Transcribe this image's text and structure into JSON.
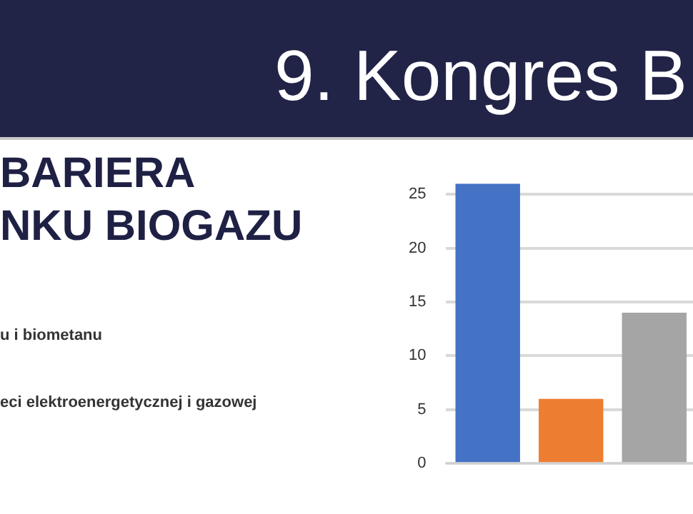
{
  "chart_data": {
    "type": "bar",
    "title": "9. Kongres B",
    "annotations": [
      "BARIERA",
      "NKU BIOGAZU",
      "u i biometanu",
      "eci elektroenergetycznej i gazowej"
    ],
    "categories": [
      null,
      null,
      null
    ],
    "values": [
      26,
      6,
      14
    ],
    "colors": [
      "#4472c4",
      "#ed7d31",
      "#a5a5a5"
    ],
    "ylim": [
      0,
      26
    ],
    "yticks": [
      0,
      5,
      10,
      15,
      20,
      25
    ],
    "grid": "y",
    "legend": false
  }
}
